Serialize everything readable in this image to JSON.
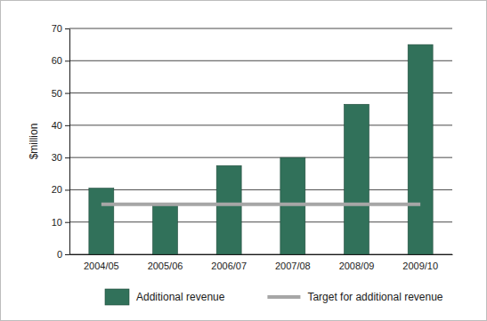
{
  "chart_data": {
    "type": "bar",
    "y_label": "$million",
    "categories": [
      "2004/05",
      "2005/06",
      "2006/07",
      "2007/08",
      "2008/09",
      "2009/10"
    ],
    "series": [
      {
        "name": "Additional revenue",
        "type": "bar",
        "color": "#31715a",
        "values": [
          20.5,
          15,
          27.5,
          30,
          46.5,
          65
        ]
      },
      {
        "name": "Target for additional revenue",
        "type": "line",
        "color": "#a6a6a6",
        "values": [
          15.5,
          15.5,
          15.5,
          15.5,
          15.5,
          15.5
        ]
      }
    ],
    "ylim": [
      0,
      70
    ],
    "yticks": [
      0,
      10,
      20,
      30,
      40,
      50,
      60,
      70
    ],
    "grid": true,
    "legend": "bottom"
  }
}
